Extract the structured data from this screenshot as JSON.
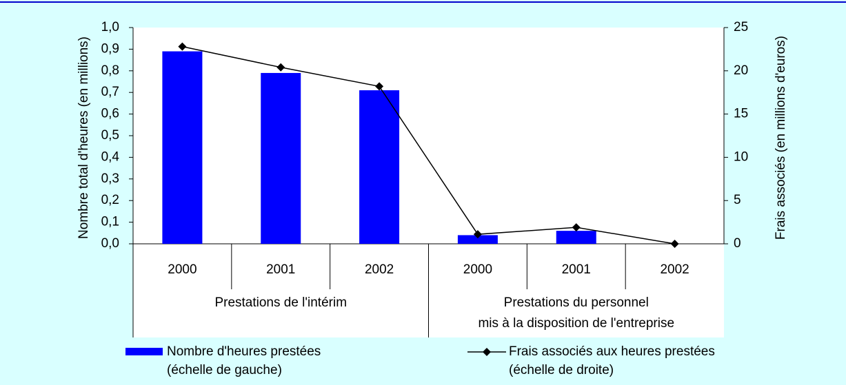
{
  "chart_data": {
    "type": "bar",
    "categories": [
      "2000",
      "2001",
      "2002",
      "2000",
      "2001",
      "2002"
    ],
    "groups": [
      {
        "lines": [
          "Prestations de l'intérim"
        ],
        "size": 3
      },
      {
        "lines": [
          "Prestations du personnel",
          "mis à la disposition de l'entreprise"
        ],
        "size": 3
      }
    ],
    "ylabel": "Nombre total d'heures (en millions)",
    "y2label": "Frais associés (en millions d'euros)",
    "ylim": [
      0,
      1
    ],
    "yticks": [
      {
        "value": 0,
        "label": "0,0"
      },
      {
        "value": 0.1,
        "label": "0,1"
      },
      {
        "value": 0.2,
        "label": "0,2"
      },
      {
        "value": 0.3,
        "label": "0,3"
      },
      {
        "value": 0.4,
        "label": "0,4"
      },
      {
        "value": 0.5,
        "label": "0,5"
      },
      {
        "value": 0.6,
        "label": "0,6"
      },
      {
        "value": 0.7,
        "label": "0,7"
      },
      {
        "value": 0.8,
        "label": "0,8"
      },
      {
        "value": 0.9,
        "label": "0,9"
      },
      {
        "value": 1,
        "label": "1,0"
      }
    ],
    "y2lim": [
      0,
      25
    ],
    "y2ticks": [
      0,
      5,
      10,
      15,
      20,
      25
    ],
    "series": [
      {
        "name": "Nombre d'heures prestées",
        "note": "(échelle de gauche)",
        "type": "bar",
        "color": "#0000ff",
        "values": [
          0.89,
          0.79,
          0.71,
          0.04,
          0.06,
          0
        ]
      },
      {
        "name": "Frais associés aux heures prestées",
        "note": "(échelle de droite)",
        "type": "line",
        "axis": "y2",
        "color": "#000000",
        "values": [
          22.8,
          20.4,
          18.2,
          1.1,
          1.9,
          0
        ]
      }
    ]
  }
}
